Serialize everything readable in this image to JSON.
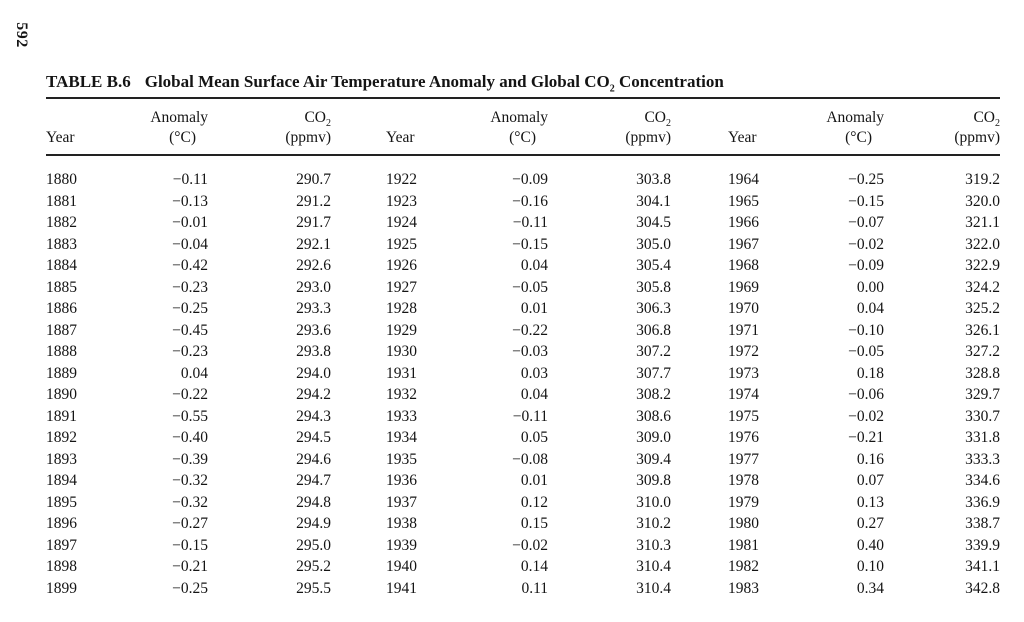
{
  "page_number": "592",
  "table": {
    "label": "TABLE B.6",
    "title": {
      "pre": "Global Mean Surface Air Temperature Anomaly and Global CO",
      "sub": "2",
      "post": " Concentration"
    },
    "headers": {
      "year": "Year",
      "anomaly": "Anomaly",
      "anomaly_unit": "(°C)",
      "co2_base": "CO",
      "co2_sub": "2",
      "co2_unit": "(ppmv)"
    },
    "groups": [
      {
        "rows": [
          [
            "1880",
            "−0.11",
            "290.7"
          ],
          [
            "1881",
            "−0.13",
            "291.2"
          ],
          [
            "1882",
            "−0.01",
            "291.7"
          ],
          [
            "1883",
            "−0.04",
            "292.1"
          ],
          [
            "1884",
            "−0.42",
            "292.6"
          ],
          [
            "1885",
            "−0.23",
            "293.0"
          ],
          [
            "1886",
            "−0.25",
            "293.3"
          ],
          [
            "1887",
            "−0.45",
            "293.6"
          ],
          [
            "1888",
            "−0.23",
            "293.8"
          ],
          [
            "1889",
            "0.04",
            "294.0"
          ],
          [
            "1890",
            "−0.22",
            "294.2"
          ],
          [
            "1891",
            "−0.55",
            "294.3"
          ],
          [
            "1892",
            "−0.40",
            "294.5"
          ],
          [
            "1893",
            "−0.39",
            "294.6"
          ],
          [
            "1894",
            "−0.32",
            "294.7"
          ],
          [
            "1895",
            "−0.32",
            "294.8"
          ],
          [
            "1896",
            "−0.27",
            "294.9"
          ],
          [
            "1897",
            "−0.15",
            "295.0"
          ],
          [
            "1898",
            "−0.21",
            "295.2"
          ],
          [
            "1899",
            "−0.25",
            "295.5"
          ]
        ]
      },
      {
        "rows": [
          [
            "1922",
            "−0.09",
            "303.8"
          ],
          [
            "1923",
            "−0.16",
            "304.1"
          ],
          [
            "1924",
            "−0.11",
            "304.5"
          ],
          [
            "1925",
            "−0.15",
            "305.0"
          ],
          [
            "1926",
            "0.04",
            "305.4"
          ],
          [
            "1927",
            "−0.05",
            "305.8"
          ],
          [
            "1928",
            "0.01",
            "306.3"
          ],
          [
            "1929",
            "−0.22",
            "306.8"
          ],
          [
            "1930",
            "−0.03",
            "307.2"
          ],
          [
            "1931",
            "0.03",
            "307.7"
          ],
          [
            "1932",
            "0.04",
            "308.2"
          ],
          [
            "1933",
            "−0.11",
            "308.6"
          ],
          [
            "1934",
            "0.05",
            "309.0"
          ],
          [
            "1935",
            "−0.08",
            "309.4"
          ],
          [
            "1936",
            "0.01",
            "309.8"
          ],
          [
            "1937",
            "0.12",
            "310.0"
          ],
          [
            "1938",
            "0.15",
            "310.2"
          ],
          [
            "1939",
            "−0.02",
            "310.3"
          ],
          [
            "1940",
            "0.14",
            "310.4"
          ],
          [
            "1941",
            "0.11",
            "310.4"
          ]
        ]
      },
      {
        "rows": [
          [
            "1964",
            "−0.25",
            "319.2"
          ],
          [
            "1965",
            "−0.15",
            "320.0"
          ],
          [
            "1966",
            "−0.07",
            "321.1"
          ],
          [
            "1967",
            "−0.02",
            "322.0"
          ],
          [
            "1968",
            "−0.09",
            "322.9"
          ],
          [
            "1969",
            "0.00",
            "324.2"
          ],
          [
            "1970",
            "0.04",
            "325.2"
          ],
          [
            "1971",
            "−0.10",
            "326.1"
          ],
          [
            "1972",
            "−0.05",
            "327.2"
          ],
          [
            "1973",
            "0.18",
            "328.8"
          ],
          [
            "1974",
            "−0.06",
            "329.7"
          ],
          [
            "1975",
            "−0.02",
            "330.7"
          ],
          [
            "1976",
            "−0.21",
            "331.8"
          ],
          [
            "1977",
            "0.16",
            "333.3"
          ],
          [
            "1978",
            "0.07",
            "334.6"
          ],
          [
            "1979",
            "0.13",
            "336.9"
          ],
          [
            "1980",
            "0.27",
            "338.7"
          ],
          [
            "1981",
            "0.40",
            "339.9"
          ],
          [
            "1982",
            "0.10",
            "341.1"
          ],
          [
            "1983",
            "0.34",
            "342.8"
          ]
        ]
      }
    ]
  }
}
